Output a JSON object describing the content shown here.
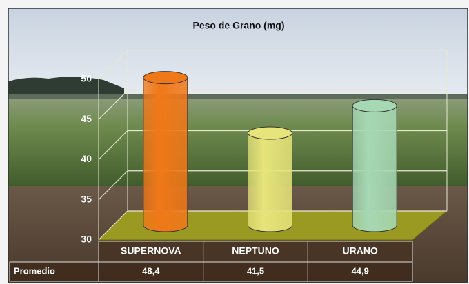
{
  "chart_data": {
    "type": "bar3d",
    "title": "Peso de Grano (mg)",
    "categories": [
      "SUPERNOVA",
      "NEPTUNO",
      "URANO"
    ],
    "values": [
      48.4,
      41.5,
      44.9
    ],
    "value_labels": [
      "48,4",
      "41,5",
      "44,9"
    ],
    "colors": [
      "#f07818",
      "#e6e47a",
      "#a6d8b4"
    ],
    "table_row_label": "Promedio",
    "ylim": [
      30,
      50
    ],
    "yticks": [
      30,
      35,
      40,
      45,
      50
    ],
    "grid": true
  }
}
